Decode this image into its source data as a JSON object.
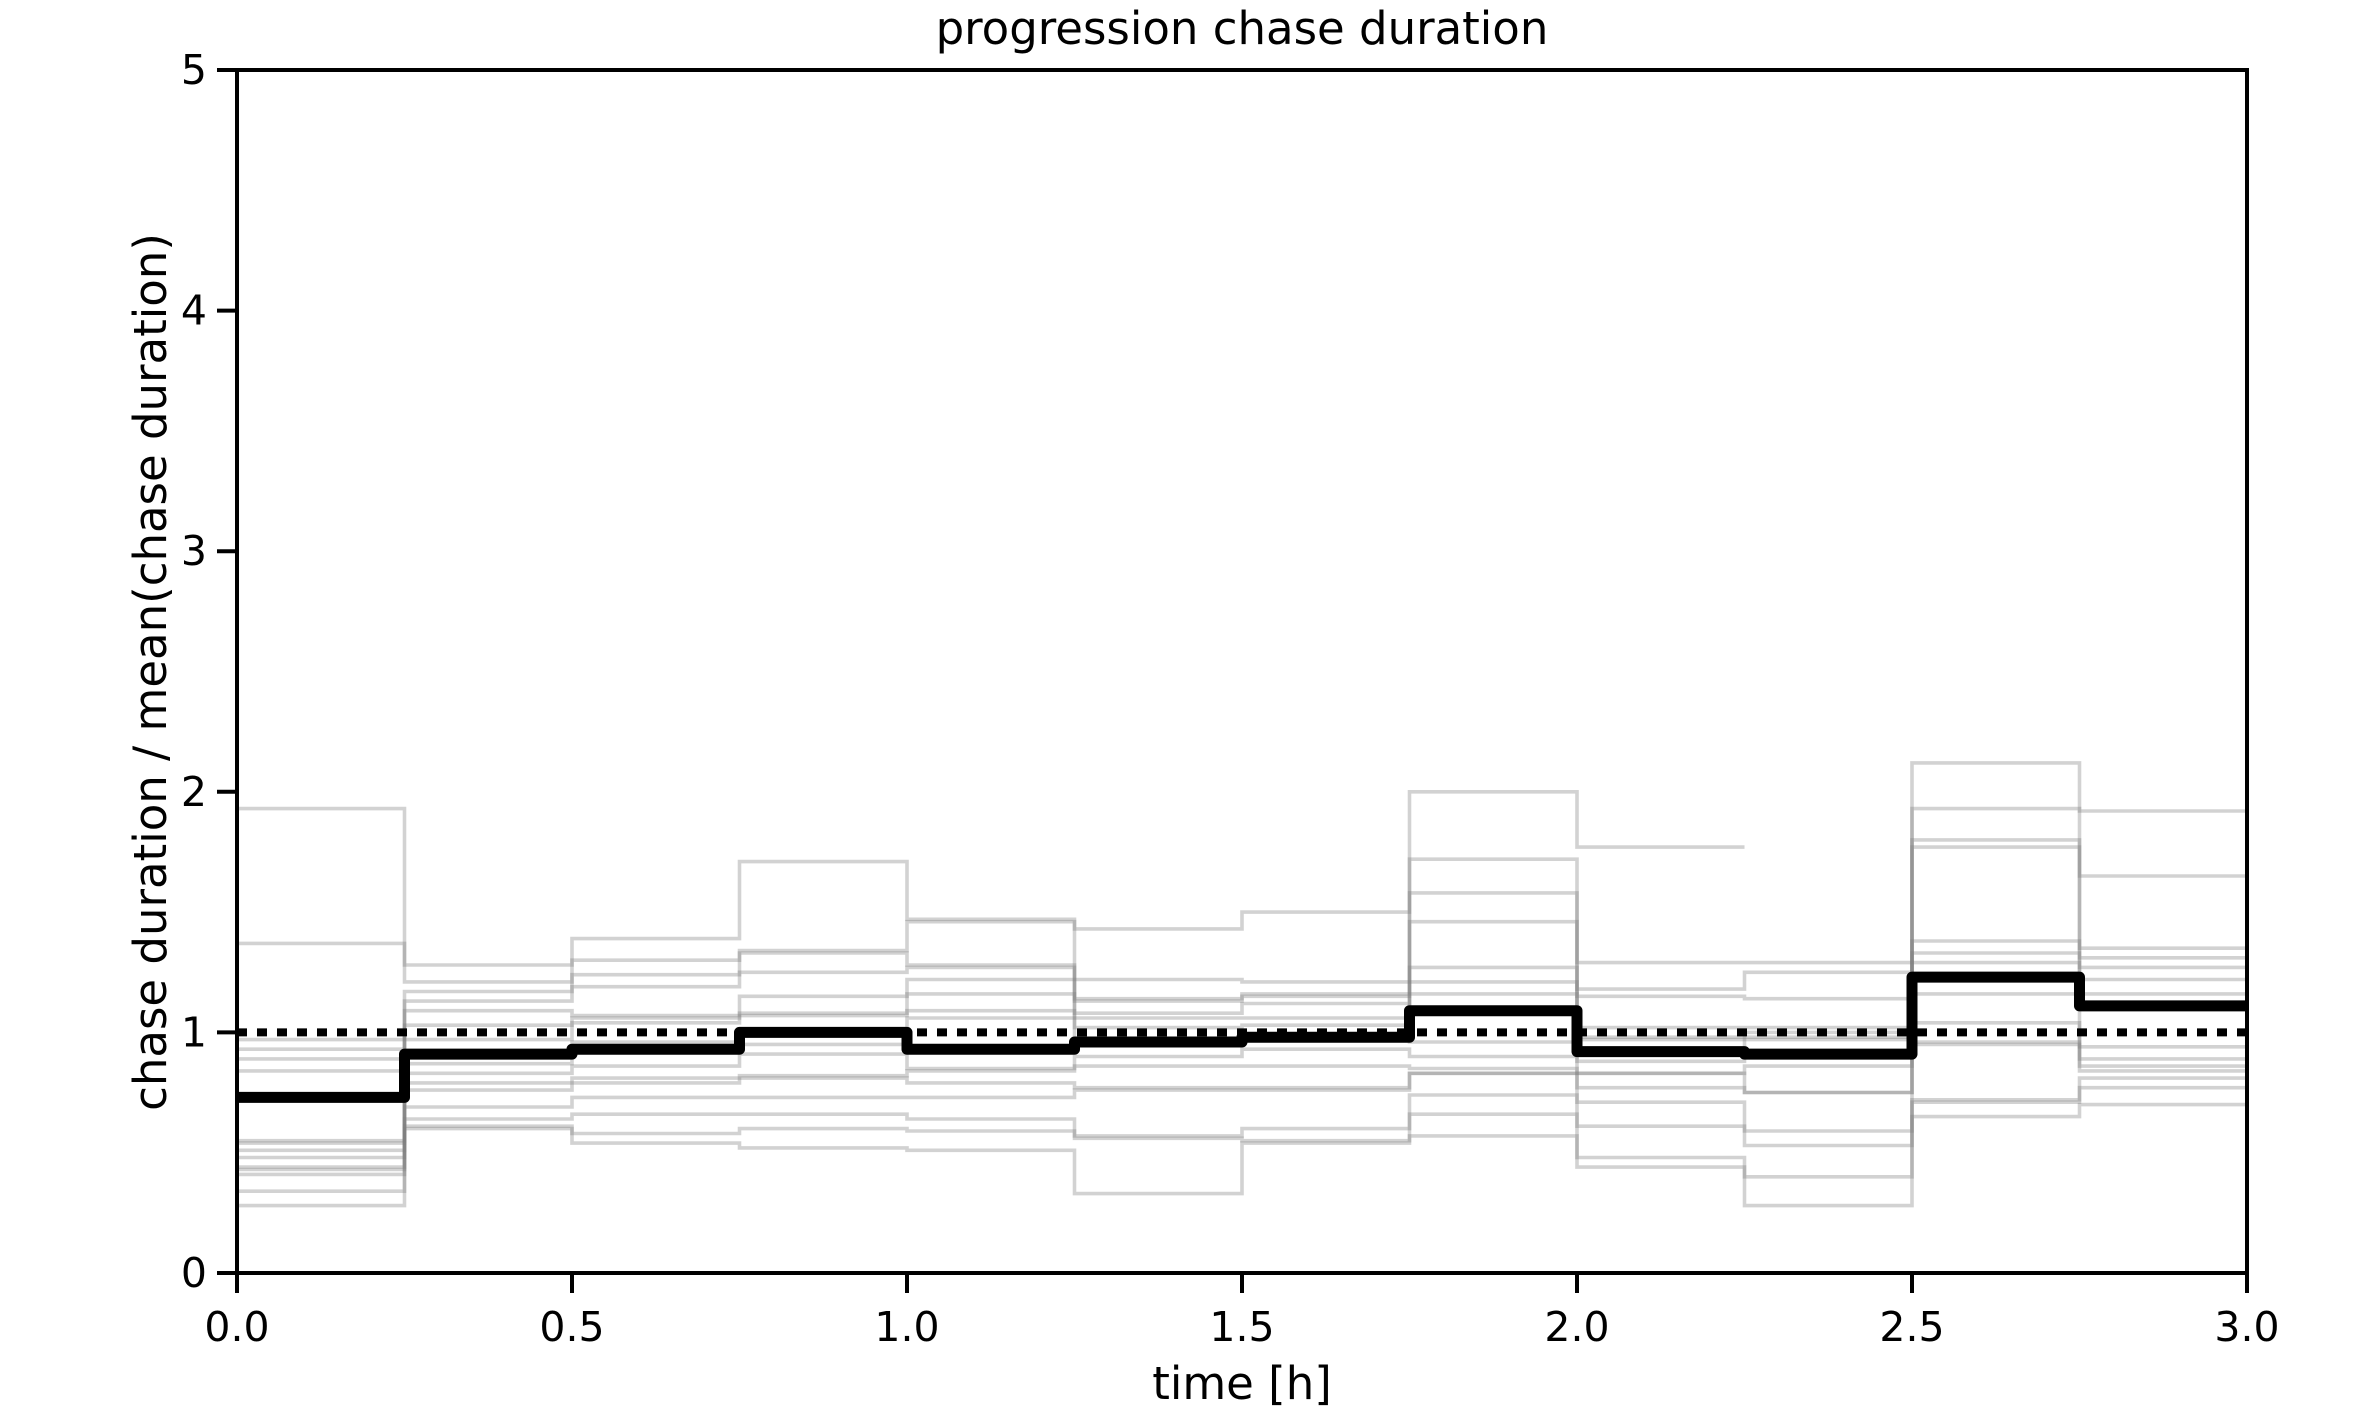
{
  "chart_data": {
    "type": "line",
    "step_mode": "post",
    "title": "progression chase duration",
    "xlabel": "time [h]",
    "ylabel": "chase duration / mean(chase duration)",
    "xlim": [
      0.0,
      3.0
    ],
    "ylim": [
      0,
      5
    ],
    "grid": false,
    "legend": null,
    "x_ticks": [
      {
        "value": 0.0,
        "label": "0.0"
      },
      {
        "value": 0.5,
        "label": "0.5"
      },
      {
        "value": 1.0,
        "label": "1.0"
      },
      {
        "value": 1.5,
        "label": "1.5"
      },
      {
        "value": 2.0,
        "label": "2.0"
      },
      {
        "value": 2.5,
        "label": "2.5"
      },
      {
        "value": 3.0,
        "label": "3.0"
      }
    ],
    "y_ticks": [
      {
        "value": 0,
        "label": "0"
      },
      {
        "value": 1,
        "label": "1"
      },
      {
        "value": 2,
        "label": "2"
      },
      {
        "value": 3,
        "label": "3"
      },
      {
        "value": 4,
        "label": "4"
      },
      {
        "value": 5,
        "label": "5"
      }
    ],
    "bin_edges": [
      0.0,
      0.25,
      0.5,
      0.75,
      1.0,
      1.25,
      1.5,
      1.75,
      2.0,
      2.25,
      2.5,
      2.75,
      3.0
    ],
    "reference_line": {
      "y": 1.0,
      "style": "dotted",
      "color": "#000000",
      "line_width": 8
    },
    "mean_series": {
      "name": "mean",
      "color": "#000000",
      "line_width": 11,
      "values": [
        0.73,
        0.91,
        0.93,
        1.0,
        0.93,
        0.96,
        0.98,
        1.09,
        0.92,
        0.91,
        1.23,
        1.11
      ]
    },
    "individual_series": {
      "color": "#7f7f7f",
      "opacity": 0.35,
      "line_width": 3.6,
      "traces": [
        [
          1.93,
          1.28,
          1.39,
          1.71,
          1.47,
          1.43,
          1.5,
          2.0,
          1.77,
          null,
          null,
          null
        ],
        [
          1.37,
          1.21,
          1.3,
          1.34,
          1.46,
          1.22,
          1.21,
          1.72,
          1.29,
          1.29,
          2.12,
          1.92
        ],
        [
          0.97,
          1.17,
          1.24,
          1.33,
          1.28,
          1.14,
          1.16,
          1.58,
          1.18,
          1.25,
          1.93,
          1.65
        ],
        [
          0.93,
          1.13,
          1.19,
          1.25,
          1.27,
          1.13,
          1.15,
          1.46,
          1.15,
          1.14,
          1.8,
          1.35
        ],
        [
          0.89,
          1.09,
          1.07,
          1.15,
          1.22,
          1.08,
          1.12,
          1.27,
          1.02,
          1.02,
          1.77,
          1.31
        ],
        [
          0.84,
          1.03,
          1.06,
          1.08,
          1.16,
          1.06,
          1.06,
          1.21,
          0.98,
          1.0,
          1.38,
          1.27
        ],
        [
          0.55,
          0.97,
          1.04,
          1.07,
          1.09,
          1.02,
          1.03,
          1.16,
          0.97,
          0.98,
          1.33,
          1.22
        ],
        [
          0.54,
          0.87,
          0.96,
          0.95,
          1.06,
          0.97,
          0.98,
          0.96,
          0.88,
          0.97,
          1.29,
          1.16
        ],
        [
          0.51,
          0.83,
          0.86,
          0.91,
          0.85,
          0.9,
          0.93,
          0.9,
          0.83,
          0.86,
          1.16,
          0.94
        ],
        [
          0.48,
          0.79,
          0.81,
          0.82,
          0.84,
          0.86,
          0.86,
          0.85,
          0.83,
          0.75,
          1.04,
          0.89
        ],
        [
          0.44,
          0.76,
          0.79,
          0.81,
          0.79,
          0.77,
          0.77,
          0.83,
          0.77,
          0.75,
          0.96,
          0.86
        ],
        [
          0.43,
          0.69,
          0.73,
          0.73,
          0.73,
          0.76,
          0.76,
          0.83,
          0.71,
          0.59,
          0.95,
          0.84
        ],
        [
          0.41,
          0.64,
          0.66,
          0.66,
          0.64,
          0.57,
          0.6,
          0.74,
          0.61,
          0.53,
          0.72,
          0.81
        ],
        [
          0.34,
          0.61,
          0.58,
          0.6,
          0.59,
          0.56,
          0.55,
          0.66,
          0.48,
          0.4,
          0.71,
          0.77
        ],
        [
          0.28,
          0.6,
          0.54,
          0.52,
          0.51,
          0.33,
          0.54,
          0.57,
          0.44,
          0.28,
          0.65,
          0.7
        ]
      ]
    },
    "colors": {
      "background": "#ffffff",
      "spine": "#000000",
      "text": "#000000"
    }
  }
}
